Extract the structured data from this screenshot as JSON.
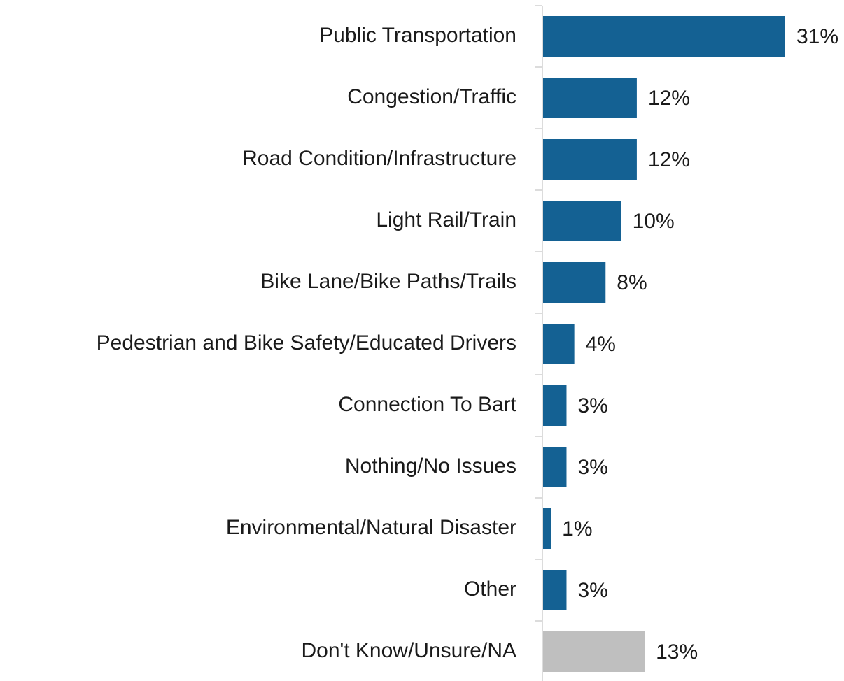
{
  "chart_data": {
    "type": "hbar",
    "categories": [
      "Public Transportation",
      "Congestion/Traffic",
      "Road Condition/Infrastructure",
      "Light Rail/Train",
      "Bike Lane/Bike Paths/Trails",
      "Pedestrian and Bike Safety/Educated Drivers",
      "Connection To Bart",
      "Nothing/No Issues",
      "Environmental/Natural Disaster",
      "Other",
      "Don't Know/Unsure/NA"
    ],
    "values": [
      31,
      12,
      12,
      10,
      8,
      4,
      3,
      3,
      1,
      3,
      13
    ],
    "value_labels": [
      "31%",
      "12%",
      "12%",
      "10%",
      "8%",
      "4%",
      "3%",
      "3%",
      "1%",
      "3%",
      "13%"
    ],
    "colors": [
      "#146193",
      "#146193",
      "#146193",
      "#146193",
      "#146193",
      "#146193",
      "#146193",
      "#146193",
      "#146193",
      "#146193",
      "#bfbfbf"
    ]
  }
}
